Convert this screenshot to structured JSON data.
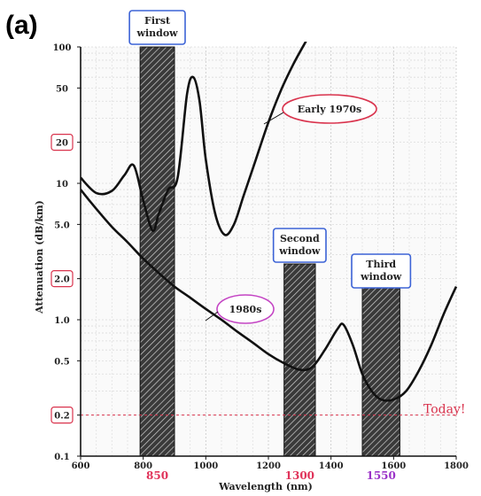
{
  "panel_label": "(a)",
  "chart_data": {
    "type": "line",
    "title": "",
    "xlabel": "Wavelength (nm)",
    "ylabel": "Attenuation (dB/km)",
    "yscale": "log",
    "xlim": [
      600,
      1800
    ],
    "ylim": [
      0.1,
      100
    ],
    "xticks": [
      "600",
      "800",
      "1000",
      "1200",
      "1400",
      "1600",
      "1800"
    ],
    "yticks": [
      {
        "value": 100,
        "label": "100",
        "boxed": false
      },
      {
        "value": 50,
        "label": "50",
        "boxed": false
      },
      {
        "value": 20,
        "label": "20",
        "boxed": true
      },
      {
        "value": 10,
        "label": "10",
        "boxed": false
      },
      {
        "value": 5,
        "label": "5.0",
        "boxed": false
      },
      {
        "value": 2,
        "label": "2.0",
        "boxed": true
      },
      {
        "value": 1,
        "label": "1.0",
        "boxed": false
      },
      {
        "value": 0.5,
        "label": "0.5",
        "boxed": false
      },
      {
        "value": 0.2,
        "label": "0.2",
        "boxed": true
      },
      {
        "value": 0.1,
        "label": "0.1",
        "boxed": false
      }
    ],
    "grid": true,
    "windows": [
      {
        "label_lines": [
          "First",
          "window"
        ],
        "x_start": 790,
        "x_end": 900,
        "wavelength_label": "850",
        "wavelength_color": "#e0335a"
      },
      {
        "label_lines": [
          "Second",
          "window"
        ],
        "x_start": 1250,
        "x_end": 1350,
        "wavelength_label": "1300",
        "wavelength_color": "#e0335a"
      },
      {
        "label_lines": [
          "Third",
          "window"
        ],
        "x_start": 1500,
        "x_end": 1620,
        "wavelength_label": "1550",
        "wavelength_color": "#9b33c8"
      }
    ],
    "series": [
      {
        "name": "Early 1970s",
        "color": "#111111",
        "x": [
          600,
          650,
          700,
          740,
          770,
          800,
          830,
          850,
          880,
          910,
          940,
          960,
          980,
          1000,
          1030,
          1060,
          1090,
          1120,
          1160,
          1200,
          1240,
          1280,
          1320
        ],
        "y": [
          11,
          8.5,
          8.8,
          11.5,
          13.5,
          7.5,
          4.5,
          6.0,
          9.0,
          11.0,
          45.0,
          60.0,
          40.0,
          15.0,
          6.0,
          4.2,
          5.0,
          8.0,
          15.0,
          28.0,
          48.0,
          75.0,
          110.0
        ]
      },
      {
        "name": "1980s",
        "color": "#111111",
        "x": [
          600,
          650,
          700,
          750,
          800,
          850,
          900,
          950,
          1000,
          1050,
          1100,
          1150,
          1200,
          1250,
          1300,
          1340,
          1380,
          1420,
          1440,
          1470,
          1500,
          1530,
          1560,
          1600,
          1640,
          1680,
          1720,
          1760,
          1800
        ],
        "y": [
          9.0,
          6.5,
          4.8,
          3.7,
          2.8,
          2.2,
          1.75,
          1.45,
          1.2,
          1.0,
          0.82,
          0.68,
          0.56,
          0.48,
          0.43,
          0.45,
          0.6,
          0.85,
          0.92,
          0.65,
          0.4,
          0.3,
          0.26,
          0.26,
          0.3,
          0.42,
          0.65,
          1.1,
          1.75
        ]
      }
    ],
    "annotations": [
      {
        "text": "Early 1970s",
        "box_color": "#d9334d"
      },
      {
        "text": "1980s",
        "box_color": "#c445c4"
      },
      {
        "text": "Today!",
        "value": 0.2,
        "color": "#d9334d"
      }
    ]
  }
}
